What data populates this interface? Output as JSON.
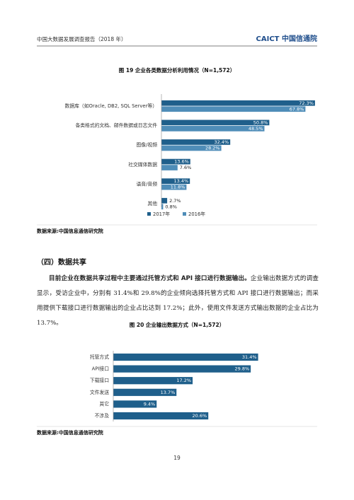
{
  "header": {
    "title": "中国大数据发展调查报告（2018 年）",
    "logo": "CAICT 中国信通院"
  },
  "figures": [
    {
      "type": "bar",
      "orientation": "horizontal",
      "title": "图 19  企业各类数据分析利用情况（N=1,572）",
      "categories": [
        "数据库（如Oracle, DB2, SQL Server等）",
        "各类格式的文档、邮件数据或日志文件",
        "图像/视频",
        "社交媒体数据",
        "语音/音频",
        "其他"
      ],
      "series": [
        {
          "name": "2017年",
          "color": "#1f5f8b",
          "values": [
            72.3,
            50.8,
            32.4,
            13.6,
            13.4,
            2.7
          ],
          "value_labels": [
            "72.3%",
            "50.8%",
            "32.4%",
            "13.6%",
            "13.4%",
            "2.7%"
          ]
        },
        {
          "name": "2016年",
          "color": "#4f8db8",
          "values": [
            67.8,
            48.5,
            28.2,
            7.6,
            11.8,
            0.8
          ],
          "value_labels": [
            "67.8%",
            "48.5%",
            "28.2%",
            "7.6%",
            "11.8%",
            "0.8%"
          ]
        }
      ],
      "xlim": [
        0,
        75
      ],
      "source": "数据来源:中国信息通信研究院"
    },
    {
      "type": "bar",
      "orientation": "horizontal",
      "title": "图 20  企业输出数据方式（N=1,572）",
      "categories": [
        "托管方式",
        "API接口",
        "下载接口",
        "文件发送",
        "其它",
        "不涉及"
      ],
      "series": [
        {
          "color": "#1f5f8b",
          "values": [
            31.4,
            29.8,
            17.2,
            13.7,
            9.4,
            20.6
          ],
          "value_labels": [
            "31.4%",
            "29.8%",
            "17.2%",
            "13.7%",
            "9.4%",
            "20.6%"
          ]
        }
      ],
      "xlim": [
        0,
        33
      ],
      "source": "数据来源:中国信息通信研究院"
    }
  ],
  "section": {
    "title": "（四）数据共享",
    "lead": "目前企业在数据共享过程中主要通过托管方式和 API 接口进行数据输出。",
    "body": "企业输出数据方式的调查显示，受访企业中，分别有 31.4%和 29.8%的企业倾向选择托管方式和 API 接口进行数据输出；而采用提供下载接口进行数据输出的企业占比达到 17.2%；此外，使用文件发送方式输出数据的企业占比为 13.7%。"
  },
  "page_number": "19"
}
